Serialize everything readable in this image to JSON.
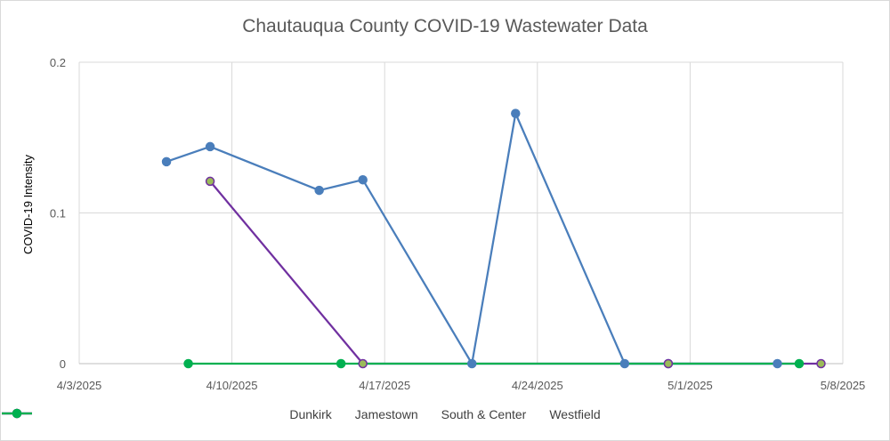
{
  "chart_data": {
    "type": "line",
    "title": "Chautauqua County COVID-19 Wastewater Data",
    "xlabel": "",
    "ylabel": "COVID-19 Intensity",
    "xlim": [
      "2025-04-03",
      "2025-05-08"
    ],
    "ylim": [
      0,
      0.2
    ],
    "x_ticks": [
      "4/3/2025",
      "4/10/2025",
      "4/17/2025",
      "4/24/2025",
      "5/1/2025",
      "5/8/2025"
    ],
    "y_ticks": [
      "0",
      "0.1",
      "0.2"
    ],
    "grid": true,
    "legend": "bottom",
    "series": [
      {
        "name": "Dunkirk",
        "color": "#4a7ebb",
        "marker_fill": "#4a7ebb",
        "points": [
          {
            "x": "2025-04-07",
            "y": 0.134
          },
          {
            "x": "2025-04-09",
            "y": 0.144
          },
          {
            "x": "2025-04-14",
            "y": 0.115
          },
          {
            "x": "2025-04-16",
            "y": 0.122
          },
          {
            "x": "2025-04-21",
            "y": 0.0
          },
          {
            "x": "2025-04-23",
            "y": 0.166
          },
          {
            "x": "2025-04-28",
            "y": 0.0
          },
          {
            "x": "2025-04-30",
            "y": 0.0
          },
          {
            "x": "2025-05-05",
            "y": 0.0
          }
        ]
      },
      {
        "name": "Jamestown",
        "color": "#c0504d",
        "marker_fill": "#c0504d",
        "points": []
      },
      {
        "name": "South & Center",
        "color": "#7030a0",
        "marker_fill": "#9bbb59",
        "points": [
          {
            "x": "2025-04-09",
            "y": 0.121
          },
          {
            "x": "2025-04-16",
            "y": 0.0
          },
          {
            "x": "2025-04-30",
            "y": 0.0
          },
          {
            "x": "2025-05-07",
            "y": 0.0
          }
        ]
      },
      {
        "name": "Westfield",
        "color": "#00b050",
        "marker_fill": "#00b050",
        "points": [
          {
            "x": "2025-04-08",
            "y": 0.0
          },
          {
            "x": "2025-04-15",
            "y": 0.0
          },
          {
            "x": "2025-05-06",
            "y": 0.0
          }
        ]
      }
    ]
  }
}
